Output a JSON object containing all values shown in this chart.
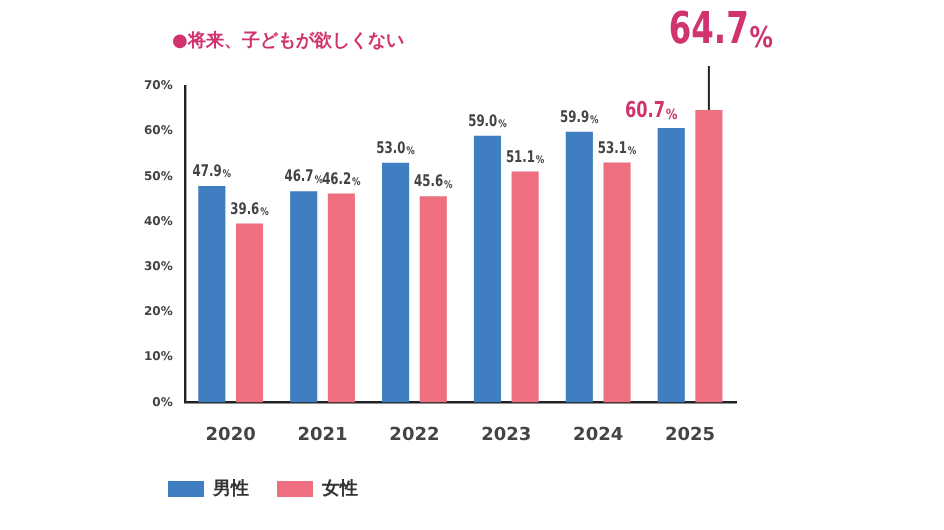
{
  "chart_data": {
    "type": "bar",
    "title": "●将来、子どもが欲しくない",
    "categories": [
      "2020",
      "2021",
      "2022",
      "2023",
      "2024",
      "2025"
    ],
    "series": [
      {
        "name": "男性",
        "color": "#3f7ec0",
        "values": [
          47.9,
          46.7,
          53.0,
          59.0,
          59.9,
          60.7
        ],
        "value_labels": [
          "47.9%",
          "46.7%",
          "53.0%",
          "59.0%",
          "59.9%",
          "60.7%"
        ]
      },
      {
        "name": "女性",
        "color": "#ee6f7f",
        "values": [
          39.6,
          46.2,
          45.6,
          51.1,
          53.1,
          64.7
        ],
        "value_labels": [
          "39.6%",
          "46.2%",
          "45.6%",
          "51.1%",
          "53.1%",
          "64.7%"
        ]
      }
    ],
    "ylim": [
      0,
      70
    ],
    "yticks": [
      {
        "value": 0,
        "label": "0%"
      },
      {
        "value": 10,
        "label": "10%"
      },
      {
        "value": 20,
        "label": "20%"
      },
      {
        "value": 30,
        "label": "30%"
      },
      {
        "value": 40,
        "label": "40%"
      },
      {
        "value": 50,
        "label": "50%"
      },
      {
        "value": 60,
        "label": "60%"
      },
      {
        "value": 70,
        "label": "70%"
      }
    ],
    "grid": false,
    "legend": "bottom left"
  }
}
